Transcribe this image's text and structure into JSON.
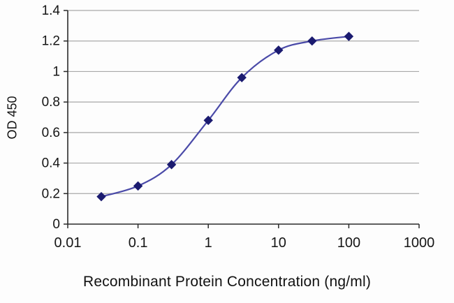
{
  "chart_data": {
    "type": "line",
    "title": "",
    "xlabel": "Recombinant Protein Concentration (ng/ml)",
    "ylabel": "OD 450",
    "x_scale": "log",
    "xlim": [
      0.01,
      1000
    ],
    "ylim": [
      0,
      1.4
    ],
    "x_ticks": [
      0.01,
      0.1,
      1,
      10,
      100,
      1000
    ],
    "x_tick_labels": [
      "0.01",
      "0.1",
      "1",
      "10",
      "100",
      "1000"
    ],
    "y_ticks": [
      0,
      0.2,
      0.4,
      0.6,
      0.8,
      1,
      1.2,
      1.4
    ],
    "y_tick_labels": [
      "0",
      "0.2",
      "0.4",
      "0.6",
      "0.8",
      "1",
      "1.2",
      "1.4"
    ],
    "grid": "horizontal",
    "legend": "none",
    "x": [
      0.03,
      0.1,
      0.3,
      1,
      3,
      10,
      30,
      100
    ],
    "series": [
      {
        "name": "OD 450",
        "values": [
          0.18,
          0.25,
          0.39,
          0.68,
          0.96,
          1.14,
          1.2,
          1.23
        ]
      }
    ],
    "line_color": "#4a4aa8",
    "marker_color": "#1b1b70",
    "grid_color": "#a8a8a8",
    "axis_color": "#2a2a2a",
    "tick_text_color": "#151515"
  }
}
